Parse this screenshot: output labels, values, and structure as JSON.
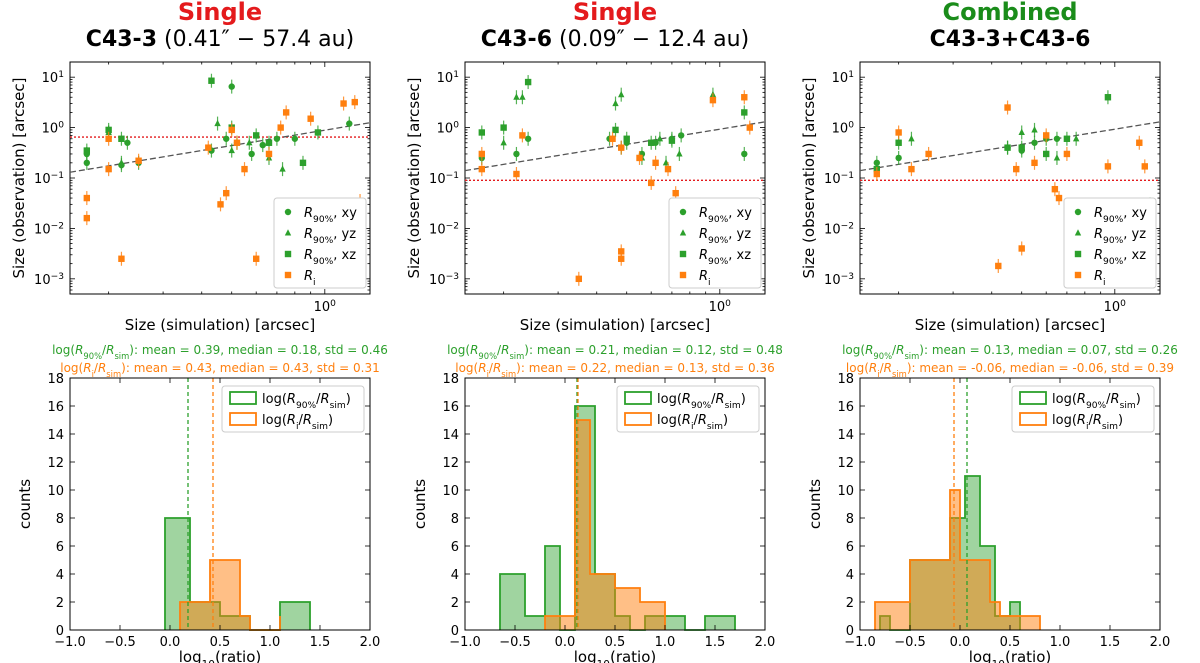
{
  "colors": {
    "green": "#2ca02c",
    "orange": "#ff7f0e",
    "red_title": "#e41a1c",
    "green_title": "#1a8c1a",
    "hline": "#e41a1c",
    "fitline": "#555555"
  },
  "legend_labels": {
    "scatter": [
      "R90%, xy",
      "R90%, yz",
      "R90%, xz",
      "Ri"
    ],
    "hist": [
      "log(R90%/Rsim)",
      "log(Ri/Rsim)"
    ]
  },
  "chart_data": [
    {
      "type": "scatter",
      "title_kind": "Single",
      "title_name": "C43-3",
      "title_res": "(0.41″ − 57.4 au)",
      "xlabel": "Size (simulation) [arcsec]",
      "ylabel": "Size (observation) [arcsec]",
      "xscale": "log",
      "yscale": "log",
      "xlim": [
        0.15,
        1.4
      ],
      "ylim": [
        0.0005,
        20
      ],
      "x_tick_labels": [
        "10^0"
      ],
      "y_tick_labels": [
        "10^-3",
        "10^-2",
        "10^-1",
        "10^0",
        "10^1"
      ],
      "hline": 0.65,
      "fit": [
        [
          0.15,
          0.13
        ],
        [
          1.4,
          1.25
        ]
      ],
      "series": [
        {
          "name": "R90%, xy",
          "marker": "circle",
          "color": "green",
          "points": [
            [
              0.17,
              0.2
            ],
            [
              0.17,
              0.3
            ],
            [
              0.22,
              0.18
            ],
            [
              0.23,
              0.5
            ],
            [
              0.25,
              0.2
            ],
            [
              0.43,
              0.35
            ],
            [
              0.48,
              0.6
            ],
            [
              0.5,
              6.5
            ],
            [
              0.52,
              0.5
            ],
            [
              0.58,
              0.3
            ],
            [
              0.63,
              0.45
            ],
            [
              0.7,
              0.6
            ],
            [
              0.8,
              0.6
            ],
            [
              1.2,
              1.2
            ]
          ]
        },
        {
          "name": "R90%, yz",
          "marker": "triangle",
          "color": "green",
          "points": [
            [
              0.2,
              0.8
            ],
            [
              0.22,
              0.2
            ],
            [
              0.45,
              1.2
            ],
            [
              0.5,
              0.35
            ],
            [
              0.57,
              0.5
            ],
            [
              0.66,
              0.25
            ],
            [
              0.73,
              0.15
            ]
          ]
        },
        {
          "name": "R90%, xz",
          "marker": "square",
          "color": "green",
          "points": [
            [
              0.17,
              0.35
            ],
            [
              0.2,
              0.9
            ],
            [
              0.22,
              0.6
            ],
            [
              0.43,
              8.5
            ],
            [
              0.5,
              1.0
            ],
            [
              0.6,
              0.7
            ],
            [
              0.66,
              0.5
            ],
            [
              0.85,
              0.2
            ],
            [
              0.95,
              0.8
            ]
          ]
        },
        {
          "name": "Ri",
          "marker": "square",
          "color": "orange",
          "points": [
            [
              0.17,
              0.04
            ],
            [
              0.17,
              0.016
            ],
            [
              0.2,
              0.15
            ],
            [
              0.2,
              0.6
            ],
            [
              0.22,
              0.0025
            ],
            [
              0.25,
              0.22
            ],
            [
              0.42,
              0.4
            ],
            [
              0.46,
              0.03
            ],
            [
              0.48,
              0.05
            ],
            [
              0.5,
              0.9
            ],
            [
              0.52,
              0.5
            ],
            [
              0.55,
              0.15
            ],
            [
              0.6,
              0.0025
            ],
            [
              0.66,
              0.3
            ],
            [
              0.72,
              1.0
            ],
            [
              0.75,
              2.0
            ],
            [
              0.9,
              1.5
            ],
            [
              1.15,
              3.0
            ],
            [
              1.25,
              3.2
            ],
            [
              1.3,
              0.035
            ]
          ]
        }
      ]
    },
    {
      "type": "scatter",
      "title_kind": "Single",
      "title_name": "C43-6",
      "title_res": "(0.09″ − 12.4 au)",
      "xlabel": "Size (simulation) [arcsec]",
      "ylabel": "Size (observation) [arcsec]",
      "xscale": "log",
      "yscale": "log",
      "xlim": [
        0.15,
        1.4
      ],
      "ylim": [
        0.0005,
        20
      ],
      "x_tick_labels": [
        "10^0"
      ],
      "y_tick_labels": [
        "10^-3",
        "10^-2",
        "10^-1",
        "10^0",
        "10^1"
      ],
      "hline": 0.09,
      "fit": [
        [
          0.15,
          0.14
        ],
        [
          1.4,
          1.3
        ]
      ],
      "series": [
        {
          "name": "R90%, xy",
          "marker": "circle",
          "color": "green",
          "points": [
            [
              0.17,
              0.25
            ],
            [
              0.22,
              0.3
            ],
            [
              0.24,
              0.6
            ],
            [
              0.44,
              0.6
            ],
            [
              0.48,
              0.4
            ],
            [
              0.5,
              0.5
            ],
            [
              0.56,
              0.3
            ],
            [
              0.62,
              0.5
            ],
            [
              0.7,
              0.6
            ],
            [
              0.75,
              0.7
            ],
            [
              1.2,
              0.3
            ]
          ]
        },
        {
          "name": "R90%, yz",
          "marker": "triangle",
          "color": "green",
          "points": [
            [
              0.2,
              0.5
            ],
            [
              0.22,
              4.0
            ],
            [
              0.23,
              4.0
            ],
            [
              0.46,
              3.0
            ],
            [
              0.48,
              4.5
            ],
            [
              0.56,
              0.25
            ],
            [
              0.64,
              0.6
            ],
            [
              0.67,
              0.2
            ],
            [
              0.74,
              0.3
            ],
            [
              0.95,
              4.5
            ]
          ]
        },
        {
          "name": "R90%, xz",
          "marker": "square",
          "color": "green",
          "points": [
            [
              0.17,
              0.8
            ],
            [
              0.2,
              1.0
            ],
            [
              0.24,
              8.0
            ],
            [
              0.46,
              0.9
            ],
            [
              0.5,
              0.6
            ],
            [
              0.6,
              0.5
            ],
            [
              0.7,
              0.55
            ],
            [
              1.2,
              2.0
            ]
          ]
        },
        {
          "name": "Ri",
          "marker": "square",
          "color": "orange",
          "points": [
            [
              0.17,
              0.3
            ],
            [
              0.17,
              0.15
            ],
            [
              0.22,
              0.12
            ],
            [
              0.23,
              0.7
            ],
            [
              0.35,
              0.001
            ],
            [
              0.45,
              0.6
            ],
            [
              0.48,
              0.4
            ],
            [
              0.48,
              0.0035
            ],
            [
              0.48,
              0.0025
            ],
            [
              0.55,
              0.25
            ],
            [
              0.6,
              0.08
            ],
            [
              0.62,
              0.2
            ],
            [
              0.68,
              0.15
            ],
            [
              0.72,
              0.05
            ],
            [
              0.95,
              3.5
            ],
            [
              1.2,
              4.0
            ],
            [
              1.25,
              1.0
            ]
          ]
        }
      ]
    },
    {
      "type": "scatter",
      "title_kind": "Combined",
      "title_name": "C43-3+C43-6",
      "title_res": "",
      "xlabel": "Size (simulation) [arcsec]",
      "ylabel": "Size (observation) [arcsec]",
      "xscale": "log",
      "yscale": "log",
      "xlim": [
        0.15,
        1.4
      ],
      "ylim": [
        0.0005,
        20
      ],
      "x_tick_labels": [
        "10^0"
      ],
      "y_tick_labels": [
        "10^-3",
        "10^-2",
        "10^-1",
        "10^0",
        "10^1"
      ],
      "hline": 0.09,
      "fit": [
        [
          0.15,
          0.14
        ],
        [
          1.4,
          1.3
        ]
      ],
      "series": [
        {
          "name": "R90%, xy",
          "marker": "circle",
          "color": "green",
          "points": [
            [
              0.17,
              0.2
            ],
            [
              0.2,
              0.25
            ],
            [
              0.45,
              0.4
            ],
            [
              0.5,
              0.35
            ],
            [
              0.55,
              0.5
            ],
            [
              0.6,
              0.6
            ],
            [
              0.65,
              0.6
            ],
            [
              0.7,
              0.01
            ],
            [
              1.3,
              0.03
            ]
          ]
        },
        {
          "name": "R90%, yz",
          "marker": "triangle",
          "color": "green",
          "points": [
            [
              0.22,
              0.6
            ],
            [
              0.5,
              0.8
            ],
            [
              0.55,
              0.9
            ],
            [
              0.65,
              0.25
            ],
            [
              0.7,
              0.02
            ],
            [
              0.75,
              0.6
            ]
          ]
        },
        {
          "name": "R90%, xz",
          "marker": "square",
          "color": "green",
          "points": [
            [
              0.17,
              0.15
            ],
            [
              0.2,
              0.5
            ],
            [
              0.45,
              0.4
            ],
            [
              0.5,
              0.4
            ],
            [
              0.6,
              0.3
            ],
            [
              0.7,
              0.6
            ],
            [
              0.95,
              4.0
            ]
          ]
        },
        {
          "name": "Ri",
          "marker": "square",
          "color": "orange",
          "points": [
            [
              0.17,
              0.12
            ],
            [
              0.2,
              0.8
            ],
            [
              0.22,
              0.15
            ],
            [
              0.25,
              0.3
            ],
            [
              0.42,
              0.0018
            ],
            [
              0.45,
              2.5
            ],
            [
              0.48,
              0.15
            ],
            [
              0.5,
              0.004
            ],
            [
              0.55,
              0.2
            ],
            [
              0.6,
              0.7
            ],
            [
              0.64,
              0.06
            ],
            [
              0.66,
              0.04
            ],
            [
              0.7,
              0.3
            ],
            [
              0.75,
              0.007
            ],
            [
              0.95,
              0.17
            ],
            [
              1.2,
              0.5
            ],
            [
              1.25,
              0.17
            ]
          ]
        }
      ]
    },
    {
      "type": "histogram",
      "stats_green": "log(R90%/Rsim): mean = 0.39, median = 0.18, std = 0.46",
      "stats_orange": "log(Ri/Rsim): mean = 0.43, median = 0.43, std = 0.31",
      "xlabel": "log10(ratio)",
      "ylabel": "counts",
      "xlim": [
        -1.0,
        2.0
      ],
      "ylim": [
        0,
        18
      ],
      "x_tick_labels": [
        "−1.0",
        "−0.5",
        "0.0",
        "0.5",
        "1.0",
        "1.5",
        "2.0"
      ],
      "y_tick_labels": [
        "0",
        "2",
        "4",
        "6",
        "8",
        "10",
        "12",
        "14",
        "16",
        "18"
      ],
      "x_ticks": [
        -1.0,
        -0.5,
        0.0,
        0.5,
        1.0,
        1.5,
        2.0
      ],
      "y_ticks": [
        0,
        2,
        4,
        6,
        8,
        10,
        12,
        14,
        16,
        18
      ],
      "green_edges": [
        -0.05,
        0.2,
        0.4,
        0.5,
        0.8,
        1.1,
        1.4
      ],
      "green_counts": [
        8,
        2,
        2,
        1,
        0,
        2
      ],
      "orange_edges": [
        0.1,
        0.4,
        0.7,
        0.8,
        1.1
      ],
      "orange_counts": [
        2,
        5,
        1,
        0,
        1
      ],
      "green_median": 0.18,
      "orange_median": 0.43
    },
    {
      "type": "histogram",
      "stats_green": "log(R90%/Rsim): mean = 0.21, median = 0.12, std = 0.48",
      "stats_orange": "log(Ri/Rsim): mean = 0.22, median = 0.13, std = 0.36",
      "xlabel": "log10(ratio)",
      "ylabel": "counts",
      "xlim": [
        -1.0,
        2.0
      ],
      "ylim": [
        0,
        18
      ],
      "x_tick_labels": [
        "−1.0",
        "−0.5",
        "0.0",
        "0.5",
        "1.0",
        "1.5",
        "2.0"
      ],
      "y_tick_labels": [
        "0",
        "2",
        "4",
        "6",
        "8",
        "10",
        "12",
        "14",
        "16",
        "18"
      ],
      "x_ticks": [
        -1.0,
        -0.5,
        0.0,
        0.5,
        1.0,
        1.5,
        2.0
      ],
      "y_ticks": [
        0,
        2,
        4,
        6,
        8,
        10,
        12,
        14,
        16,
        18
      ],
      "green_edges": [
        -0.65,
        -0.4,
        -0.2,
        -0.05,
        0.1,
        0.3,
        0.5,
        0.65,
        0.8,
        1.0,
        1.2,
        1.4,
        1.7
      ],
      "green_counts": [
        4,
        1,
        6,
        0,
        16,
        4,
        1,
        0,
        1,
        1,
        0,
        1
      ],
      "orange_edges": [
        -0.2,
        -0.05,
        0.1,
        0.25,
        0.5,
        0.75,
        1.0
      ],
      "orange_counts": [
        1,
        1,
        15,
        4,
        3,
        2
      ],
      "green_median": 0.12,
      "orange_median": 0.13
    },
    {
      "type": "histogram",
      "stats_green": "log(R90%/Rsim): mean = 0.13, median = 0.07, std = 0.26",
      "stats_orange": "log(Ri/Rsim): mean = -0.06, median = -0.06, std = 0.39",
      "xlabel": "log10(ratio)",
      "ylabel": "counts",
      "xlim": [
        -1.0,
        2.0
      ],
      "ylim": [
        0,
        18
      ],
      "x_tick_labels": [
        "−1.0",
        "−0.5",
        "0.0",
        "0.5",
        "1.0",
        "1.5",
        "2.0"
      ],
      "y_tick_labels": [
        "0",
        "2",
        "4",
        "6",
        "8",
        "10",
        "12",
        "14",
        "16",
        "18"
      ],
      "x_ticks": [
        -1.0,
        -0.5,
        0.0,
        0.5,
        1.0,
        1.5,
        2.0
      ],
      "y_ticks": [
        0,
        2,
        4,
        6,
        8,
        10,
        12,
        14,
        16,
        18
      ],
      "green_edges": [
        -0.8,
        -0.7,
        -0.5,
        -0.1,
        0.05,
        0.2,
        0.35,
        0.5,
        0.6
      ],
      "green_counts": [
        1,
        0,
        5,
        8,
        11,
        6,
        1,
        2
      ],
      "orange_edges": [
        -0.85,
        -0.5,
        -0.1,
        0.0,
        0.3,
        0.4,
        0.7,
        0.8
      ],
      "orange_counts": [
        2,
        5,
        10,
        5,
        2,
        1,
        1
      ],
      "green_median": 0.07,
      "orange_median": -0.06
    }
  ]
}
